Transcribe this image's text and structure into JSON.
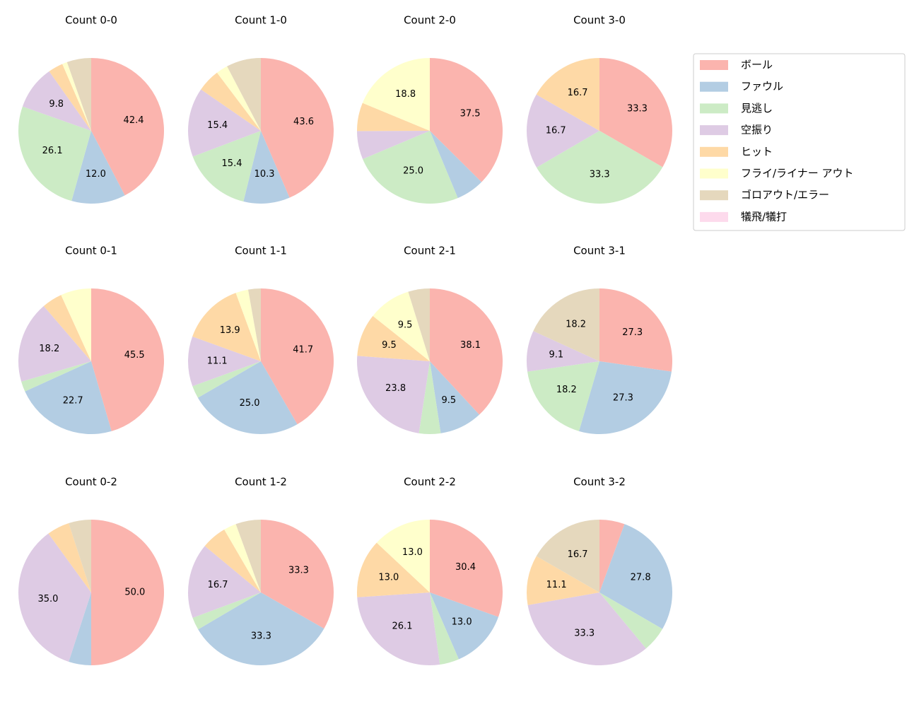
{
  "chart_data": [
    {
      "type": "pie",
      "title": "Count 0-0",
      "values": [
        42.4,
        12.0,
        26.1,
        9.8,
        3.3,
        1.1,
        5.4,
        0
      ],
      "value_labels": [
        "42.4",
        "12.0",
        "26.1",
        "9.8",
        null,
        null,
        null,
        null
      ]
    },
    {
      "type": "pie",
      "title": "Count 1-0",
      "values": [
        43.6,
        10.3,
        15.4,
        15.4,
        5.1,
        2.6,
        7.7,
        0
      ],
      "value_labels": [
        "43.6",
        "10.3",
        "15.4",
        "15.4",
        null,
        null,
        null,
        null
      ]
    },
    {
      "type": "pie",
      "title": "Count 2-0",
      "values": [
        37.5,
        6.3,
        25.0,
        6.3,
        6.3,
        18.8,
        0,
        0
      ],
      "value_labels": [
        "37.5",
        null,
        "25.0",
        null,
        null,
        "18.8",
        null,
        null
      ]
    },
    {
      "type": "pie",
      "title": "Count 3-0",
      "values": [
        33.3,
        0,
        33.3,
        16.7,
        16.7,
        0,
        0,
        0
      ],
      "value_labels": [
        "33.3",
        null,
        "33.3",
        "16.7",
        "16.7",
        null,
        null,
        null
      ]
    },
    {
      "type": "pie",
      "title": "Count 0-1",
      "values": [
        45.5,
        22.7,
        2.3,
        18.2,
        4.5,
        6.8,
        0,
        0
      ],
      "value_labels": [
        "45.5",
        "22.7",
        null,
        "18.2",
        null,
        null,
        null,
        null
      ]
    },
    {
      "type": "pie",
      "title": "Count 1-1",
      "values": [
        41.7,
        25.0,
        2.8,
        11.1,
        13.9,
        2.8,
        2.8,
        0
      ],
      "value_labels": [
        "41.7",
        "25.0",
        null,
        "11.1",
        "13.9",
        null,
        null,
        null
      ]
    },
    {
      "type": "pie",
      "title": "Count 2-1",
      "values": [
        38.1,
        9.5,
        4.8,
        23.8,
        9.5,
        9.5,
        4.8,
        0
      ],
      "value_labels": [
        "38.1",
        "9.5",
        null,
        "23.8",
        "9.5",
        "9.5",
        null,
        null
      ]
    },
    {
      "type": "pie",
      "title": "Count 3-1",
      "values": [
        27.3,
        27.3,
        18.2,
        9.1,
        0,
        0,
        18.2,
        0
      ],
      "value_labels": [
        "27.3",
        "27.3",
        "18.2",
        "9.1",
        null,
        null,
        "18.2",
        null
      ]
    },
    {
      "type": "pie",
      "title": "Count 0-2",
      "values": [
        50.0,
        5.0,
        0,
        35.0,
        5.0,
        0,
        5.0,
        0
      ],
      "value_labels": [
        "50.0",
        null,
        null,
        "35.0",
        null,
        null,
        null,
        null
      ]
    },
    {
      "type": "pie",
      "title": "Count 1-2",
      "values": [
        33.3,
        33.3,
        2.8,
        16.7,
        5.6,
        2.8,
        5.6,
        0
      ],
      "value_labels": [
        "33.3",
        "33.3",
        null,
        "16.7",
        null,
        null,
        null,
        null
      ]
    },
    {
      "type": "pie",
      "title": "Count 2-2",
      "values": [
        30.4,
        13.0,
        4.3,
        26.1,
        13.0,
        13.0,
        0,
        0
      ],
      "value_labels": [
        "30.4",
        "13.0",
        null,
        "26.1",
        "13.0",
        "13.0",
        null,
        null
      ]
    },
    {
      "type": "pie",
      "title": "Count 3-2",
      "values": [
        5.6,
        27.8,
        5.6,
        33.3,
        11.1,
        0,
        16.7,
        0
      ],
      "value_labels": [
        null,
        "27.8",
        null,
        "33.3",
        "11.1",
        null,
        "16.7",
        null
      ]
    }
  ],
  "legend": {
    "categories": [
      "ボール",
      "ファウル",
      "見逃し",
      "空振り",
      "ヒット",
      "フライ/ライナー アウト",
      "ゴロアウト/エラー",
      "犠飛/犠打"
    ],
    "colors": [
      "#fbb4ae",
      "#b3cde3",
      "#ccebc5",
      "#decbe4",
      "#fed9a6",
      "#ffffcc",
      "#e5d8bd",
      "#fddaec"
    ]
  }
}
